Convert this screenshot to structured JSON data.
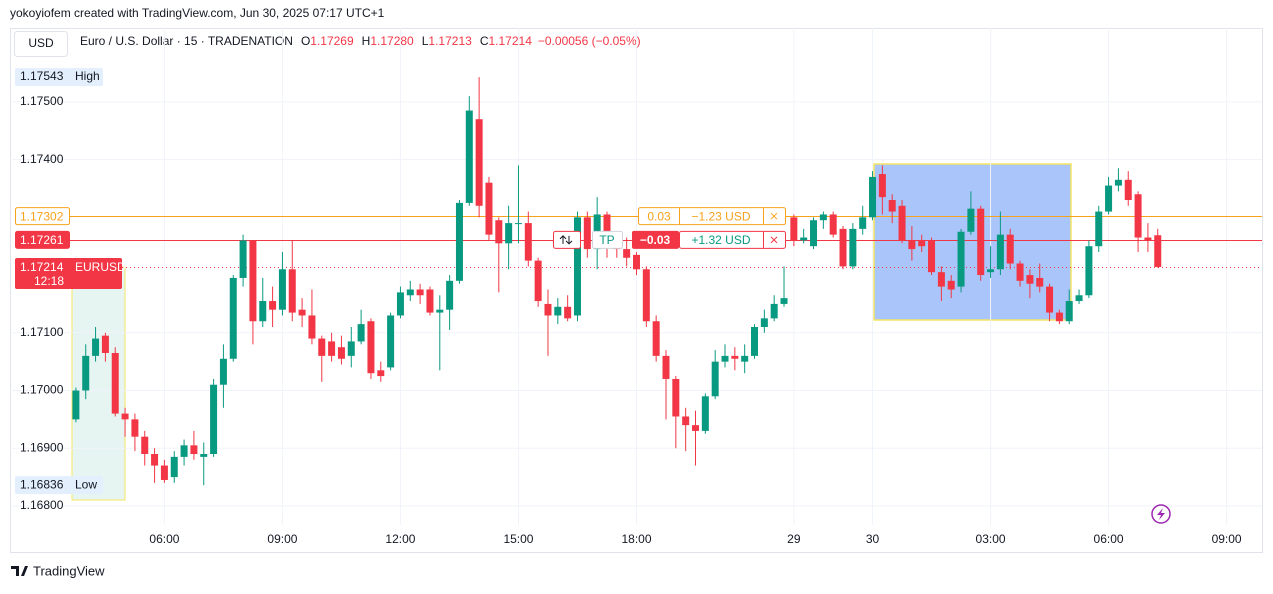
{
  "header": {
    "author_line": "yokoyiofem created with TradingView.com, Jun 30, 2025 07:17 UTC+1",
    "currency": "USD",
    "symbol": "Euro / U.S. Dollar · 15 · TRADENATION",
    "ohlc": [
      {
        "key": "O",
        "value": "1.17269"
      },
      {
        "key": "H",
        "value": "1.17280"
      },
      {
        "key": "L",
        "value": "1.17213"
      },
      {
        "key": "C",
        "value": "1.17214"
      }
    ],
    "change": "−0.00056 (−0.05%)"
  },
  "chart_data": {
    "type": "candlestick",
    "up_color": "#089981",
    "down_color": "#f23645",
    "grid": true,
    "ylim": [
      1.16767,
      1.17628
    ],
    "yticks": [
      {
        "value": 1.168,
        "label": "1.16800"
      },
      {
        "value": 1.169,
        "label": "1.16900"
      },
      {
        "value": 1.17,
        "label": "1.17000"
      },
      {
        "value": 1.171,
        "label": "1.17100"
      },
      {
        "value": 1.174,
        "label": "1.17400"
      },
      {
        "value": 1.175,
        "label": "1.17500"
      }
    ],
    "xlim": [
      -6.7,
      120.6
    ],
    "xticks": [
      {
        "value": 9,
        "label": "06:00"
      },
      {
        "value": 21,
        "label": "09:00"
      },
      {
        "value": 33,
        "label": "12:00"
      },
      {
        "value": 45,
        "label": "15:00"
      },
      {
        "value": 57,
        "label": "18:00"
      },
      {
        "value": 73,
        "label": "29"
      },
      {
        "value": 81,
        "label": "30"
      },
      {
        "value": 93,
        "label": "03:00"
      },
      {
        "value": 105,
        "label": "06:00"
      },
      {
        "value": 117,
        "label": "09:00"
      }
    ],
    "open": [
      1.1695,
      1.17,
      1.1706,
      1.17095,
      1.17065,
      1.1696,
      1.1695,
      1.1692,
      1.1689,
      1.1687,
      1.1685,
      1.16885,
      1.16905,
      1.16885,
      1.1689,
      1.1701,
      1.17055,
      1.17195,
      1.1726,
      1.1712,
      1.17155,
      1.1714,
      1.1721,
      1.1714,
      1.1713,
      1.1709,
      1.17085,
      1.17075,
      1.1706,
      1.17085,
      1.1712,
      1.17035,
      1.1704,
      1.1713,
      1.17165,
      1.17175,
      1.17175,
      1.17135,
      1.1714,
      1.1719,
      1.17325,
      1.1747,
      1.1736,
      1.17295,
      1.17255,
      1.1729,
      1.1729,
      1.17225,
      1.1715,
      1.1713,
      1.17145,
      1.1713,
      1.173,
      1.17245,
      1.17305,
      1.1726,
      1.17245,
      1.17235,
      1.1721,
      1.1712,
      1.1706,
      1.1702,
      1.16955,
      1.1694,
      1.1693,
      1.1699,
      1.1705,
      1.1706,
      1.1705,
      1.1706,
      1.1711,
      1.17125,
      1.1715,
      1.173,
      1.1726,
      1.1725,
      1.17295,
      1.17305,
      1.1728,
      1.17215,
      1.1728,
      1.173,
      1.17375,
      1.1733,
      1.1732,
      1.1726,
      1.1726,
      1.1726,
      1.17205,
      1.1719,
      1.1718,
      1.17275,
      1.17315,
      1.17205,
      1.1721,
      1.1727,
      1.1722,
      1.172,
      1.17195,
      1.1718,
      1.17135,
      1.1712,
      1.17155,
      1.17165,
      1.1725,
      1.1731,
      1.17355,
      1.17365,
      1.1734,
      1.17265,
      1.17269
    ],
    "high": [
      1.17005,
      1.1708,
      1.1711,
      1.171,
      1.17075,
      1.1697,
      1.1696,
      1.1693,
      1.169,
      1.1688,
      1.16895,
      1.16915,
      1.1693,
      1.1691,
      1.1702,
      1.1708,
      1.172,
      1.1727,
      1.1726,
      1.17195,
      1.1718,
      1.1724,
      1.1726,
      1.1716,
      1.17175,
      1.17095,
      1.171,
      1.17095,
      1.1711,
      1.1714,
      1.17125,
      1.1705,
      1.17135,
      1.1718,
      1.1719,
      1.17185,
      1.1718,
      1.17165,
      1.172,
      1.1733,
      1.1751,
      1.17543,
      1.1737,
      1.173,
      1.1732,
      1.1739,
      1.1731,
      1.1723,
      1.17175,
      1.1716,
      1.17165,
      1.1731,
      1.1731,
      1.17335,
      1.1731,
      1.17275,
      1.17265,
      1.1724,
      1.17215,
      1.1713,
      1.1707,
      1.17025,
      1.1697,
      1.16965,
      1.16995,
      1.1707,
      1.1708,
      1.17075,
      1.1708,
      1.17115,
      1.1714,
      1.17165,
      1.17215,
      1.17305,
      1.1728,
      1.173,
      1.1731,
      1.1731,
      1.17285,
      1.1729,
      1.1732,
      1.1738,
      1.1739,
      1.1734,
      1.1733,
      1.17285,
      1.1727,
      1.17265,
      1.17215,
      1.172,
      1.1728,
      1.17345,
      1.1732,
      1.1725,
      1.1731,
      1.1728,
      1.17225,
      1.1721,
      1.1722,
      1.17185,
      1.1714,
      1.17175,
      1.17175,
      1.1726,
      1.1732,
      1.1737,
      1.17385,
      1.1738,
      1.17345,
      1.1729,
      1.1728
    ],
    "low": [
      1.16945,
      1.16985,
      1.1705,
      1.1705,
      1.16955,
      1.1692,
      1.16895,
      1.1687,
      1.1684,
      1.1684,
      1.1684,
      1.1687,
      1.1688,
      1.16836,
      1.16885,
      1.1697,
      1.1705,
      1.1718,
      1.1708,
      1.1711,
      1.1711,
      1.1713,
      1.1712,
      1.1711,
      1.1708,
      1.17015,
      1.1705,
      1.17045,
      1.1704,
      1.1708,
      1.1702,
      1.17015,
      1.17035,
      1.17125,
      1.17155,
      1.1715,
      1.1713,
      1.17035,
      1.17105,
      1.17185,
      1.1732,
      1.173,
      1.1726,
      1.1717,
      1.1721,
      1.17255,
      1.17215,
      1.17145,
      1.1706,
      1.17115,
      1.1712,
      1.1712,
      1.1723,
      1.1721,
      1.1723,
      1.1723,
      1.17215,
      1.172,
      1.1711,
      1.1705,
      1.1695,
      1.169,
      1.16895,
      1.1687,
      1.16925,
      1.16985,
      1.1704,
      1.17035,
      1.1703,
      1.17055,
      1.171,
      1.1712,
      1.17145,
      1.1725,
      1.17255,
      1.17245,
      1.1728,
      1.17265,
      1.1721,
      1.1721,
      1.1727,
      1.17295,
      1.17305,
      1.1729,
      1.17255,
      1.17225,
      1.1724,
      1.172,
      1.17155,
      1.1716,
      1.1717,
      1.1727,
      1.1719,
      1.17195,
      1.172,
      1.1721,
      1.1718,
      1.1716,
      1.1717,
      1.1712,
      1.17115,
      1.17115,
      1.1715,
      1.1716,
      1.1724,
      1.17305,
      1.17345,
      1.1732,
      1.1724,
      1.1724,
      1.17213
    ],
    "close": [
      1.17,
      1.1706,
      1.1709,
      1.17065,
      1.1696,
      1.1695,
      1.1692,
      1.1689,
      1.1687,
      1.16845,
      1.16885,
      1.16905,
      1.1689,
      1.1689,
      1.1701,
      1.17055,
      1.17195,
      1.1726,
      1.1712,
      1.17155,
      1.1714,
      1.1721,
      1.17135,
      1.1713,
      1.1709,
      1.1706,
      1.1706,
      1.17055,
      1.17085,
      1.17115,
      1.1703,
      1.17025,
      1.1713,
      1.1717,
      1.17175,
      1.17165,
      1.17135,
      1.1714,
      1.1719,
      1.17325,
      1.17485,
      1.1732,
      1.1727,
      1.17255,
      1.1729,
      1.1729,
      1.17225,
      1.17155,
      1.1713,
      1.17145,
      1.17125,
      1.173,
      1.17245,
      1.17305,
      1.17275,
      1.17245,
      1.1723,
      1.1721,
      1.1712,
      1.1706,
      1.1702,
      1.16955,
      1.1694,
      1.1693,
      1.1699,
      1.1705,
      1.1706,
      1.17055,
      1.1706,
      1.1711,
      1.17125,
      1.1715,
      1.1716,
      1.1726,
      1.17265,
      1.17295,
      1.17305,
      1.1727,
      1.17215,
      1.1728,
      1.173,
      1.1737,
      1.17335,
      1.1731,
      1.1726,
      1.17245,
      1.1725,
      1.17205,
      1.1718,
      1.17175,
      1.17275,
      1.17315,
      1.172,
      1.1721,
      1.1727,
      1.1722,
      1.1719,
      1.17185,
      1.1718,
      1.17135,
      1.1712,
      1.17155,
      1.17165,
      1.1725,
      1.1731,
      1.17355,
      1.17365,
      1.1733,
      1.17265,
      1.1726,
      1.17214
    ],
    "extremes": [
      {
        "value": 1.17543,
        "tag": "High"
      },
      {
        "value": 1.16836,
        "tag": "Low"
      }
    ],
    "price_lines": [
      {
        "value": 1.17302,
        "color": "#f7a21b",
        "qty": "0.03",
        "pnl": "−1.23 USD"
      },
      {
        "value": 1.17261,
        "color": "#f23645",
        "qty": "−0.03",
        "pnl": "+1.32 USD",
        "tp": "TP"
      },
      {
        "value": 1.17214,
        "color": "#f23645",
        "symbol": "EURUSD",
        "countdown": "12:18",
        "dotted": true
      }
    ]
  },
  "footer": "TradingView"
}
